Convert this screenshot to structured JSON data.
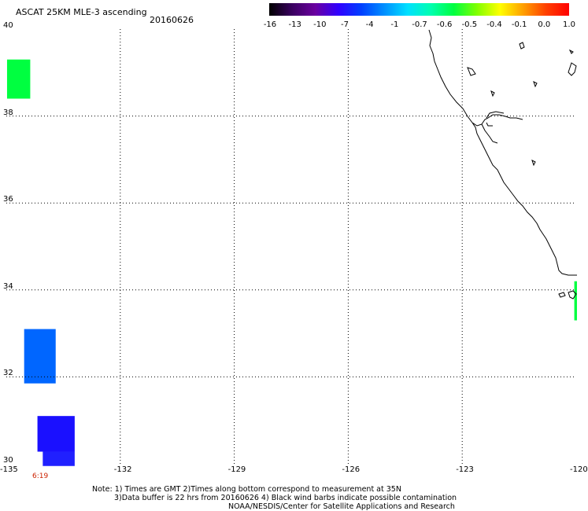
{
  "header": {
    "title": "ASCAT 25KM MLE-3 ascending",
    "date": "20160626"
  },
  "colorbar": {
    "colors": [
      "#000000",
      "#3a0060",
      "#6a00a0",
      "#3000ff",
      "#0040ff",
      "#0090ff",
      "#00e0ff",
      "#00ffb0",
      "#00ff40",
      "#80ff00",
      "#ffff00",
      "#ffa000",
      "#ff4000",
      "#ff0000"
    ],
    "labels": [
      "-16",
      "-13",
      "-10",
      "-7",
      "-4",
      "-1",
      "-0.7",
      "-0.6",
      "-0.5",
      "-0.4",
      "-0.1",
      "0.0",
      "1.0"
    ]
  },
  "axes": {
    "x_ticks": [
      "-135",
      "-132",
      "-129",
      "-126",
      "-123",
      "-120"
    ],
    "y_ticks": [
      "40",
      "38",
      "36",
      "34",
      "32",
      "30"
    ],
    "lon_range": [
      -135,
      -120
    ],
    "lat_range": [
      30,
      40
    ],
    "grid": "dotted"
  },
  "swaths": [
    {
      "name": "green-swath-north",
      "lon": [
        -134.98,
        -134.37
      ],
      "lat": [
        38.4,
        39.3
      ],
      "color": "#00ff40"
    },
    {
      "name": "blue-swath-middle",
      "lon": [
        -134.53,
        -133.7
      ],
      "lat": [
        31.85,
        33.1
      ],
      "color": "#0066ff"
    },
    {
      "name": "dark-blue-swath-south",
      "lon": [
        -134.18,
        -133.2
      ],
      "lat": [
        30.28,
        31.1
      ],
      "color": "#1a10ff"
    },
    {
      "name": "dark-blue-swath-south-lower",
      "lon": [
        -134.04,
        -133.2
      ],
      "lat": [
        29.95,
        30.28
      ],
      "color": "#2020ff"
    },
    {
      "name": "green-coastal-strip",
      "lon": [
        -120.05,
        -119.98
      ],
      "lat": [
        33.3,
        34.2
      ],
      "color": "#00ff40"
    }
  ],
  "time_label": "6:19",
  "notes": [
    "Note: 1) Times are GMT 2)Times along bottom correspond to measurement at 35N",
    "3)Data buffer is 22 hrs from 20160626 4) Black wind barbs indicate possible contamination",
    "NOAA/NESDIS/Center for Satellite Applications and Research"
  ]
}
